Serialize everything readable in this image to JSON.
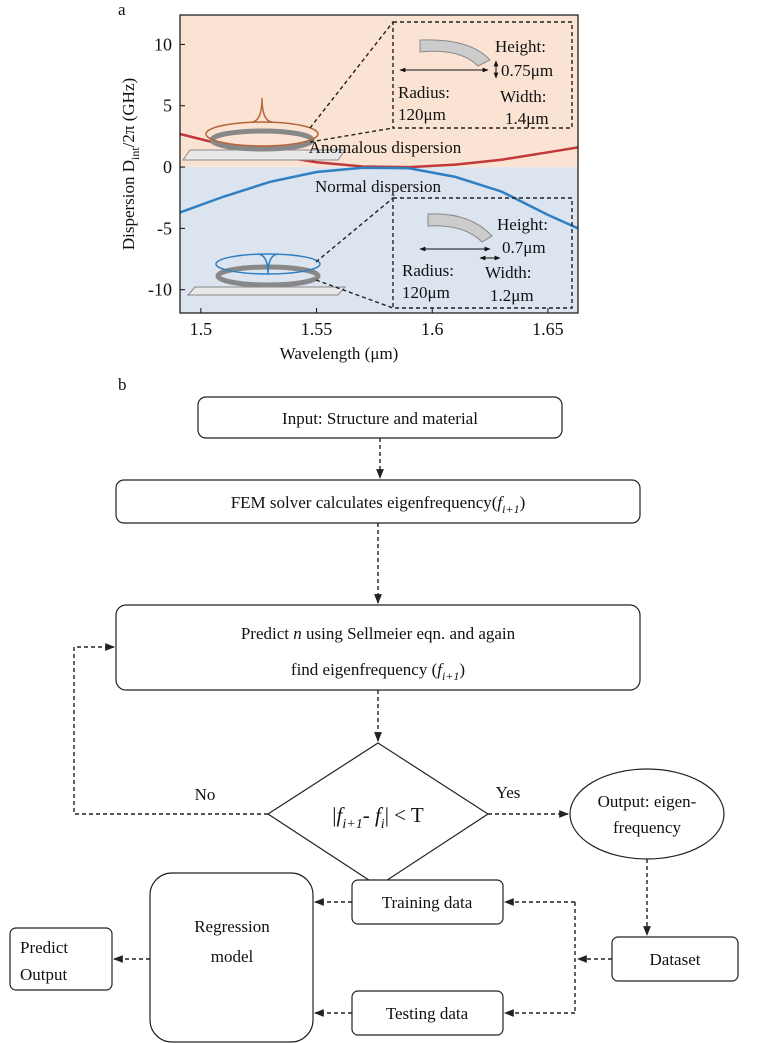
{
  "chart_data": {
    "type": "line",
    "panel_label": "a",
    "x_label": "Wavelength (μm)",
    "y_label_parts": [
      "Dispersion  D",
      "int",
      "/2π (GHz)"
    ],
    "x": [
      1.491,
      1.51,
      1.53,
      1.55,
      1.57,
      1.59,
      1.61,
      1.63,
      1.65,
      1.663
    ],
    "series": [
      {
        "color": "#c0393b",
        "values": [
          2.7,
          1.8,
          1.0,
          0.4,
          0.05,
          0.0,
          0.2,
          0.6,
          1.2,
          1.6
        ]
      },
      {
        "color": "#2f7fc1",
        "values": [
          -3.7,
          -2.4,
          -1.2,
          -0.4,
          -0.05,
          -0.1,
          -0.8,
          -2.0,
          -3.9,
          -5.0
        ]
      }
    ],
    "xlim": [
      1.491,
      1.663
    ],
    "ylim": [
      -11.9,
      12.4
    ],
    "xticks": [
      1.5,
      1.55,
      1.6,
      1.65
    ],
    "yticks": [
      -10,
      -5,
      0,
      5,
      10
    ],
    "annotations": {
      "anomalous": "Anomalous dispersion",
      "normal": "Normal dispersion",
      "inset_top": {
        "height_label": "Height:",
        "height": "0.75μm",
        "radius_label": "Radius:",
        "radius": "120μm",
        "width_label": "Width:",
        "width": "1.4μm"
      },
      "inset_bottom": {
        "height_label": "Height:",
        "height": "0.7μm",
        "radius_label": "Radius:",
        "radius": "120μm",
        "width_label": "Width:",
        "width": "1.2μm"
      }
    }
  },
  "diagram": {
    "panel_label": "b",
    "nodes": [
      {
        "text": [
          "Input: Structure and material"
        ]
      },
      {
        "text": [
          "FEM solver calculates eigenfrequency(",
          "f",
          "i+1",
          ")"
        ]
      },
      {
        "text": [
          "Predict ",
          "n",
          " using Sellmeier eqn. and again",
          "find eigenfrequency (",
          "f",
          "i+1",
          ")"
        ]
      },
      {
        "text": [
          "|",
          "f",
          "i+1",
          "- ",
          "f",
          "i",
          "| < T"
        ]
      },
      {
        "text": [
          "Output: eigen-",
          "frequency"
        ]
      },
      {
        "text": [
          "Dataset"
        ]
      },
      {
        "text": [
          "Training data"
        ]
      },
      {
        "text": [
          "Testing data"
        ]
      },
      {
        "text": [
          "Regression",
          "model"
        ]
      },
      {
        "text": [
          "Predict",
          "Output"
        ]
      }
    ],
    "edge_labels": {
      "no": "No",
      "yes": "Yes"
    }
  }
}
